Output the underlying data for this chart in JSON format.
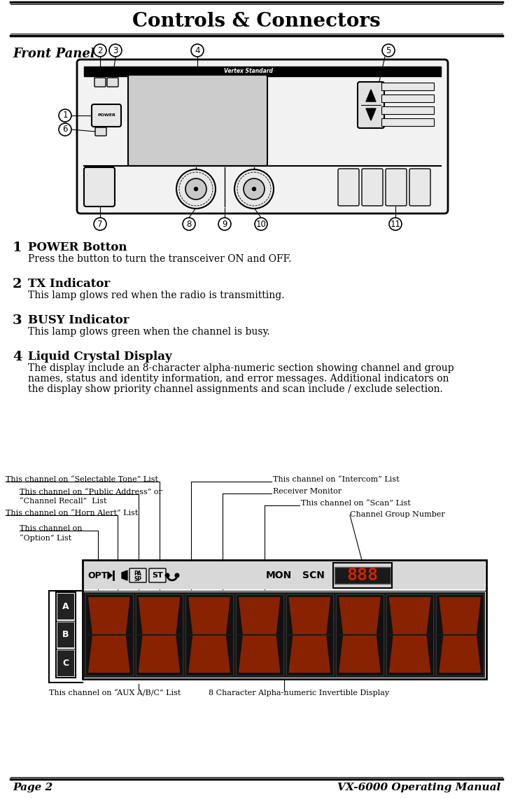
{
  "title_caps": "Controls & Connectors",
  "section_title": "Front Panel",
  "page_left": "Page 2",
  "page_right": "VX-6000 Operating Manual",
  "item1_num": "1",
  "item1_head": "POWER Botton",
  "item1_body": "Press the button to turn the transceiver ON and OFF.",
  "item2_num": "2",
  "item2_head": "TX Indicator",
  "item2_body": "This lamp glows red when the radio is transmitting.",
  "item3_num": "3",
  "item3_head": "BUSY Indicator",
  "item3_body": "This lamp glows green when the channel is busy.",
  "item4_num": "4",
  "item4_head": "Liquid Crystal Display",
  "item4_body1": "The display include an 8-character alpha-numeric section showing channel and group",
  "item4_body2": "names, status and identity information, and error messages. Additional indicators on",
  "item4_body3": "the display show priority channel assignments and scan include / exclude selection.",
  "lbl_selectable": "This channel on “Selectable Tone” List",
  "lbl_public": "This channel on “Public Address” or",
  "lbl_public2": "“Channel Recall”  List",
  "lbl_horn": "This channel on “Horn Alert” List",
  "lbl_option1": "This channel on",
  "lbl_option2": "“Option” List",
  "lbl_intercom": "This channel on “Intercom” List",
  "lbl_receiver": "Receiver Monitor",
  "lbl_scan": "This channel on “Scan” List",
  "lbl_channel_grp": "Channel Group Number",
  "lbl_aux": "This channel on “AUX A/B/C” List",
  "lbl_8char": "8 Character Alpha-numeric Invertible Display",
  "bg_color": "#ffffff"
}
